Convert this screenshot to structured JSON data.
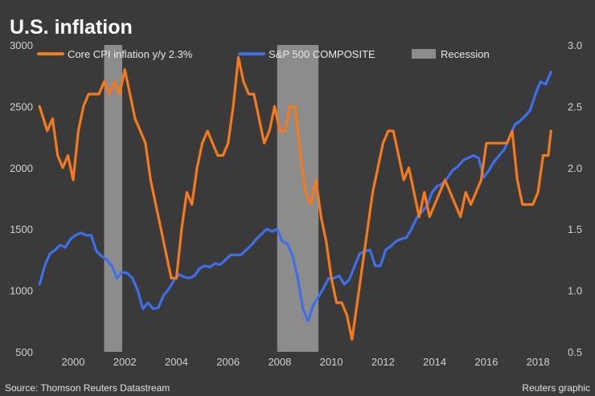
{
  "chart_data": {
    "type": "line",
    "title": "U.S. inflation",
    "source": "Source: Thomson Reuters Datastream",
    "credit": "Reuters graphic",
    "x_range": [
      1998.6,
      2018.9
    ],
    "x_ticks": [
      "2000",
      "2002",
      "2004",
      "2006",
      "2008",
      "2010",
      "2012",
      "2014",
      "2016",
      "2018"
    ],
    "x_tick_values": [
      2000,
      2002,
      2004,
      2006,
      2008,
      2010,
      2012,
      2014,
      2016,
      2018
    ],
    "left_axis": {
      "range": [
        500,
        3000
      ],
      "ticks": [
        "3000",
        "2500",
        "2000",
        "1500",
        "1000",
        "500"
      ],
      "tick_values": [
        3000,
        2500,
        2000,
        1500,
        1000,
        500
      ]
    },
    "right_axis": {
      "range": [
        0.5,
        3.0
      ],
      "ticks": [
        "3.0",
        "2.5",
        "2.0",
        "1.5",
        "1.0",
        "0.5"
      ],
      "tick_values": [
        3.0,
        2.5,
        2.0,
        1.5,
        1.0,
        0.5
      ]
    },
    "grid": false,
    "legend": [
      {
        "label": "Core CPI inflation y/y 2.3%",
        "color": "#f47a20",
        "kind": "line"
      },
      {
        "label": "S&P 500 COMPOSITE",
        "color": "#3f6fe8",
        "kind": "line"
      },
      {
        "label": "Recession",
        "color": "#8c8c8c",
        "kind": "area"
      }
    ],
    "recessions": [
      [
        2001.2,
        2001.9
      ],
      [
        2007.9,
        2009.5
      ]
    ],
    "series": [
      {
        "name": "Core CPI inflation y/y 2.3%",
        "axis": "right",
        "color": "#f47a20",
        "x": [
          1998.7,
          1999.0,
          1999.2,
          1999.4,
          1999.6,
          1999.8,
          2000.0,
          2000.2,
          2000.4,
          2000.6,
          2000.8,
          2001.0,
          2001.2,
          2001.4,
          2001.6,
          2001.8,
          2002.0,
          2002.2,
          2002.4,
          2002.6,
          2002.8,
          2003.0,
          2003.2,
          2003.4,
          2003.6,
          2003.8,
          2004.0,
          2004.2,
          2004.4,
          2004.6,
          2004.8,
          2005.0,
          2005.2,
          2005.4,
          2005.6,
          2005.8,
          2006.0,
          2006.2,
          2006.4,
          2006.6,
          2006.8,
          2007.0,
          2007.2,
          2007.4,
          2007.6,
          2007.8,
          2008.0,
          2008.2,
          2008.4,
          2008.6,
          2008.8,
          2009.0,
          2009.2,
          2009.4,
          2009.6,
          2009.8,
          2010.0,
          2010.2,
          2010.4,
          2010.6,
          2010.8,
          2011.0,
          2011.2,
          2011.4,
          2011.6,
          2011.8,
          2012.0,
          2012.2,
          2012.4,
          2012.6,
          2012.8,
          2013.0,
          2013.2,
          2013.4,
          2013.6,
          2013.8,
          2014.0,
          2014.2,
          2014.4,
          2014.6,
          2014.8,
          2015.0,
          2015.2,
          2015.4,
          2015.6,
          2015.8,
          2016.0,
          2016.2,
          2016.4,
          2016.6,
          2016.8,
          2017.0,
          2017.2,
          2017.4,
          2017.6,
          2017.8,
          2018.0,
          2018.2,
          2018.4,
          2018.5
        ],
        "y": [
          2.5,
          2.3,
          2.4,
          2.1,
          2.0,
          2.1,
          1.9,
          2.3,
          2.5,
          2.6,
          2.6,
          2.6,
          2.7,
          2.6,
          2.7,
          2.6,
          2.8,
          2.6,
          2.4,
          2.3,
          2.2,
          1.9,
          1.7,
          1.5,
          1.3,
          1.1,
          1.1,
          1.5,
          1.8,
          1.7,
          2.0,
          2.2,
          2.3,
          2.2,
          2.1,
          2.1,
          2.2,
          2.5,
          2.9,
          2.7,
          2.6,
          2.6,
          2.4,
          2.2,
          2.3,
          2.5,
          2.3,
          2.3,
          2.5,
          2.5,
          2.1,
          1.8,
          1.7,
          1.9,
          1.6,
          1.4,
          1.1,
          0.9,
          0.9,
          0.8,
          0.6,
          0.9,
          1.2,
          1.5,
          1.8,
          2.0,
          2.2,
          2.3,
          2.3,
          2.1,
          1.9,
          2.0,
          1.8,
          1.6,
          1.8,
          1.6,
          1.7,
          1.8,
          1.9,
          1.8,
          1.7,
          1.6,
          1.8,
          1.7,
          1.8,
          1.9,
          2.2,
          2.2,
          2.2,
          2.2,
          2.2,
          2.3,
          1.9,
          1.7,
          1.7,
          1.7,
          1.8,
          2.1,
          2.1,
          2.3
        ]
      },
      {
        "name": "S&P 500 COMPOSITE",
        "axis": "left",
        "color": "#3f6fe8",
        "x": [
          1998.7,
          1998.9,
          1999.1,
          1999.3,
          1999.5,
          1999.7,
          1999.9,
          2000.1,
          2000.3,
          2000.5,
          2000.7,
          2000.9,
          2001.1,
          2001.3,
          2001.5,
          2001.7,
          2001.9,
          2002.1,
          2002.3,
          2002.5,
          2002.7,
          2002.9,
          2003.1,
          2003.3,
          2003.5,
          2003.7,
          2003.9,
          2004.1,
          2004.3,
          2004.5,
          2004.7,
          2004.9,
          2005.1,
          2005.3,
          2005.5,
          2005.7,
          2005.9,
          2006.1,
          2006.3,
          2006.5,
          2006.7,
          2006.9,
          2007.1,
          2007.3,
          2007.5,
          2007.7,
          2007.9,
          2008.1,
          2008.3,
          2008.5,
          2008.7,
          2008.9,
          2009.1,
          2009.3,
          2009.5,
          2009.7,
          2009.9,
          2010.1,
          2010.3,
          2010.5,
          2010.7,
          2010.9,
          2011.1,
          2011.3,
          2011.5,
          2011.7,
          2011.9,
          2012.1,
          2012.3,
          2012.5,
          2012.7,
          2012.9,
          2013.1,
          2013.3,
          2013.5,
          2013.7,
          2013.9,
          2014.1,
          2014.3,
          2014.5,
          2014.7,
          2014.9,
          2015.1,
          2015.3,
          2015.5,
          2015.7,
          2015.9,
          2016.1,
          2016.3,
          2016.5,
          2016.7,
          2016.9,
          2017.1,
          2017.3,
          2017.5,
          2017.7,
          2017.9,
          2018.1,
          2018.3,
          2018.5
        ],
        "y": [
          1050,
          1200,
          1300,
          1330,
          1370,
          1350,
          1420,
          1450,
          1470,
          1450,
          1450,
          1320,
          1280,
          1250,
          1200,
          1100,
          1150,
          1140,
          1100,
          1000,
          850,
          900,
          850,
          860,
          960,
          1010,
          1080,
          1130,
          1110,
          1100,
          1120,
          1180,
          1200,
          1190,
          1220,
          1210,
          1250,
          1290,
          1290,
          1290,
          1330,
          1370,
          1420,
          1460,
          1500,
          1480,
          1500,
          1400,
          1380,
          1280,
          1100,
          850,
          750,
          880,
          950,
          1020,
          1100,
          1100,
          1120,
          1050,
          1090,
          1200,
          1300,
          1320,
          1330,
          1200,
          1200,
          1330,
          1360,
          1400,
          1420,
          1430,
          1500,
          1590,
          1640,
          1690,
          1800,
          1850,
          1870,
          1920,
          1980,
          2010,
          2060,
          2080,
          2100,
          2080,
          1920,
          1980,
          2050,
          2100,
          2150,
          2250,
          2350,
          2380,
          2420,
          2470,
          2600,
          2700,
          2680,
          2780
        ]
      }
    ]
  }
}
